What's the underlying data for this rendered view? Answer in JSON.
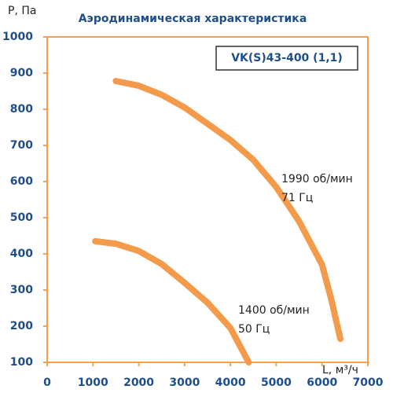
{
  "chart_data": {
    "type": "line",
    "title": "Аэродинамическая характеристика",
    "y_label": "P, Па",
    "x_label": "L, м³/ч",
    "legend_box": "VK(S)43-400 (1,1)",
    "xlim": [
      0,
      7000
    ],
    "xticks": [
      0,
      1000,
      2000,
      3000,
      4000,
      5000,
      6000,
      7000
    ],
    "ylim": [
      100,
      1000
    ],
    "yticks": [
      100,
      200,
      300,
      400,
      500,
      600,
      700,
      800,
      900,
      1000
    ],
    "frame_color": "#f5a04f",
    "series": [
      {
        "name": "1990 об/мин",
        "sublabel": "71 Гц",
        "color": "#f39a4b",
        "x": [
          1500,
          2000,
          2500,
          3000,
          3500,
          4000,
          4500,
          5000,
          5500,
          6000,
          6200,
          6400
        ],
        "values": [
          878,
          865,
          840,
          805,
          760,
          715,
          660,
          585,
          490,
          370,
          275,
          165
        ]
      },
      {
        "name": "1400 об/мин",
        "sublabel": "50 Гц",
        "color": "#f39a4b",
        "x": [
          1050,
          1500,
          2000,
          2500,
          3000,
          3500,
          4000,
          4400
        ],
        "values": [
          435,
          428,
          408,
          372,
          320,
          265,
          195,
          100
        ]
      }
    ]
  }
}
